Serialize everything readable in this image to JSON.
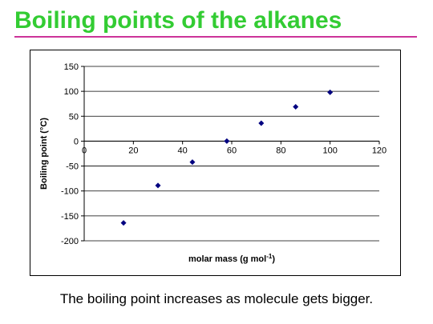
{
  "slide": {
    "title": "Boiling points of the alkanes",
    "caption": "The boiling point increases as molecule gets bigger."
  },
  "colors": {
    "title": "#33cc33",
    "rule": "#cc3399",
    "marker": "#000080"
  },
  "chart_data": {
    "type": "scatter",
    "title": "",
    "xlabel": "molar mass (g mol",
    "xlabel_superscript": "-1",
    "xlabel_suffix": ")",
    "ylabel": "Boiling point (°C)",
    "xlim": [
      0,
      120
    ],
    "ylim": [
      -200,
      150
    ],
    "xticks": [
      0,
      20,
      40,
      60,
      80,
      100,
      120
    ],
    "yticks": [
      -200,
      -150,
      -100,
      -50,
      0,
      50,
      100,
      150
    ],
    "grid": "horizontal",
    "legend": "none",
    "series": [
      {
        "x": [
          16,
          30,
          44,
          58,
          72,
          86,
          100
        ],
        "y": [
          -164,
          -89,
          -42,
          0,
          36,
          69,
          98
        ]
      }
    ]
  }
}
